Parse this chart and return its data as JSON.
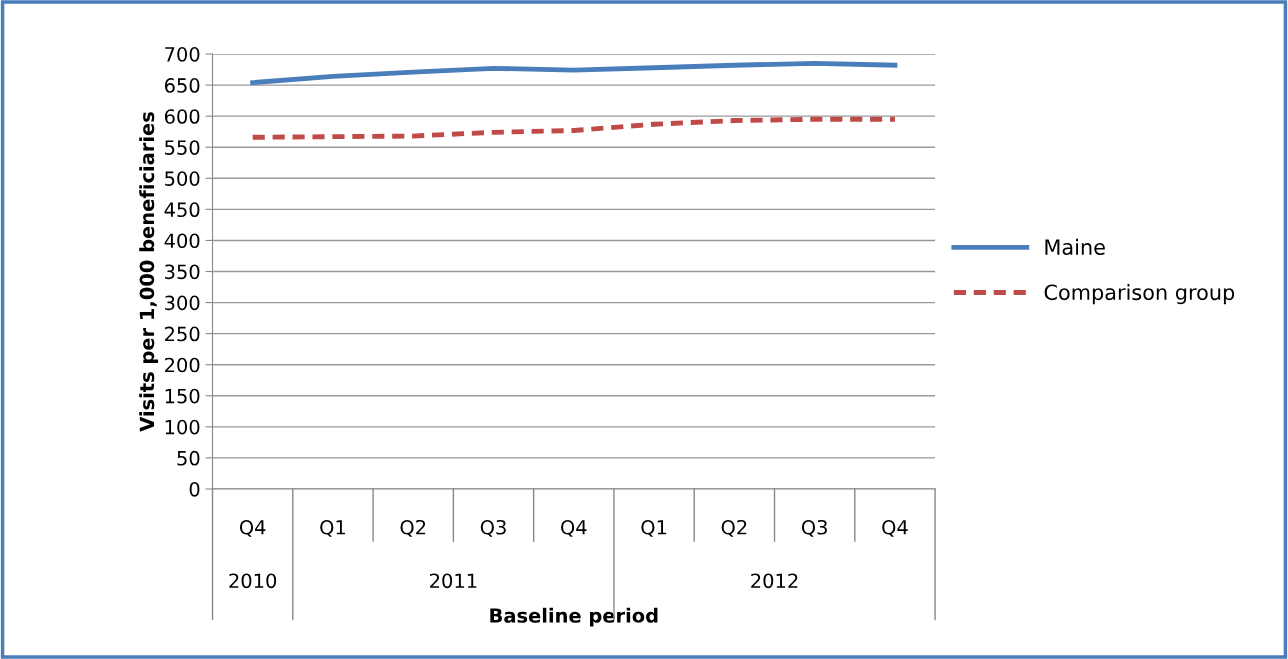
{
  "chart_data": {
    "type": "line",
    "xlabel": "Baseline period",
    "ylabel": "Visits per 1,000 beneficiaries",
    "categories": [
      "Q4",
      "Q1",
      "Q2",
      "Q3",
      "Q4",
      "Q1",
      "Q2",
      "Q3",
      "Q4"
    ],
    "series": [
      {
        "name": "Maine",
        "color": "#4a7ebb",
        "line_style": "solid",
        "values": [
          654,
          664,
          671,
          677,
          674,
          678,
          682,
          685,
          682
        ]
      },
      {
        "name": "Comparison group",
        "color": "#be4b48",
        "line_style": "dashed",
        "values": [
          566,
          567,
          568,
          574,
          577,
          587,
          593,
          595,
          595
        ]
      }
    ],
    "annotations": [
      "2010",
      "2011",
      "2012"
    ],
    "ylim": [
      0,
      700
    ],
    "yticks": [
      0,
      50,
      100,
      150,
      200,
      250,
      300,
      350,
      400,
      450,
      500,
      550,
      600,
      650,
      700
    ],
    "grid": "y",
    "legend": "right",
    "marker": "none"
  }
}
